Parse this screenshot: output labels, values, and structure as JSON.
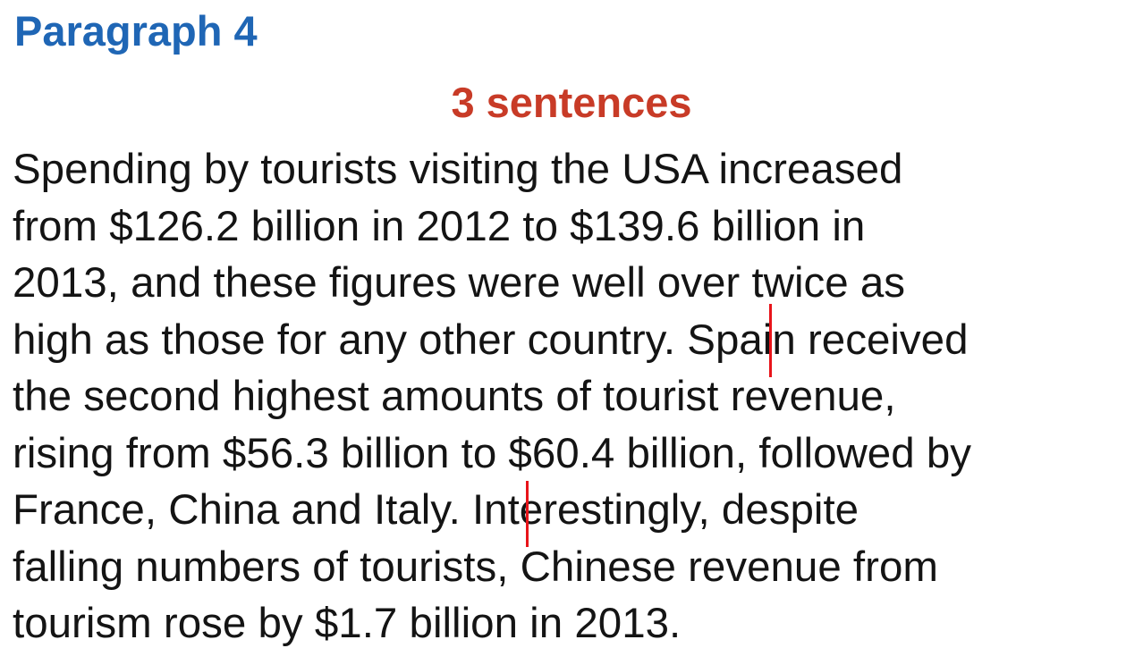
{
  "heading": "Paragraph 4",
  "subheading": "3 sentences",
  "paragraph_lines": [
    "Spending by tourists visiting the USA increased",
    "from $126.2 billion in 2012 to $139.6 billion in",
    "2013, and these figures were well over twice as",
    "high as those for any other country. Spain received",
    "the second highest amounts of tourist revenue,",
    "rising from $56.3 billion to $60.4 billion, followed by",
    "France, China and Italy. Interestingly, despite",
    "falling numbers of tourists, Chinese revenue from",
    "tourism rose by $1.7 billion in 2013."
  ],
  "colors": {
    "heading": "#1f66b5",
    "subheading": "#c83b27",
    "body_text": "#141414",
    "sentence_marker": "#e8141a"
  }
}
